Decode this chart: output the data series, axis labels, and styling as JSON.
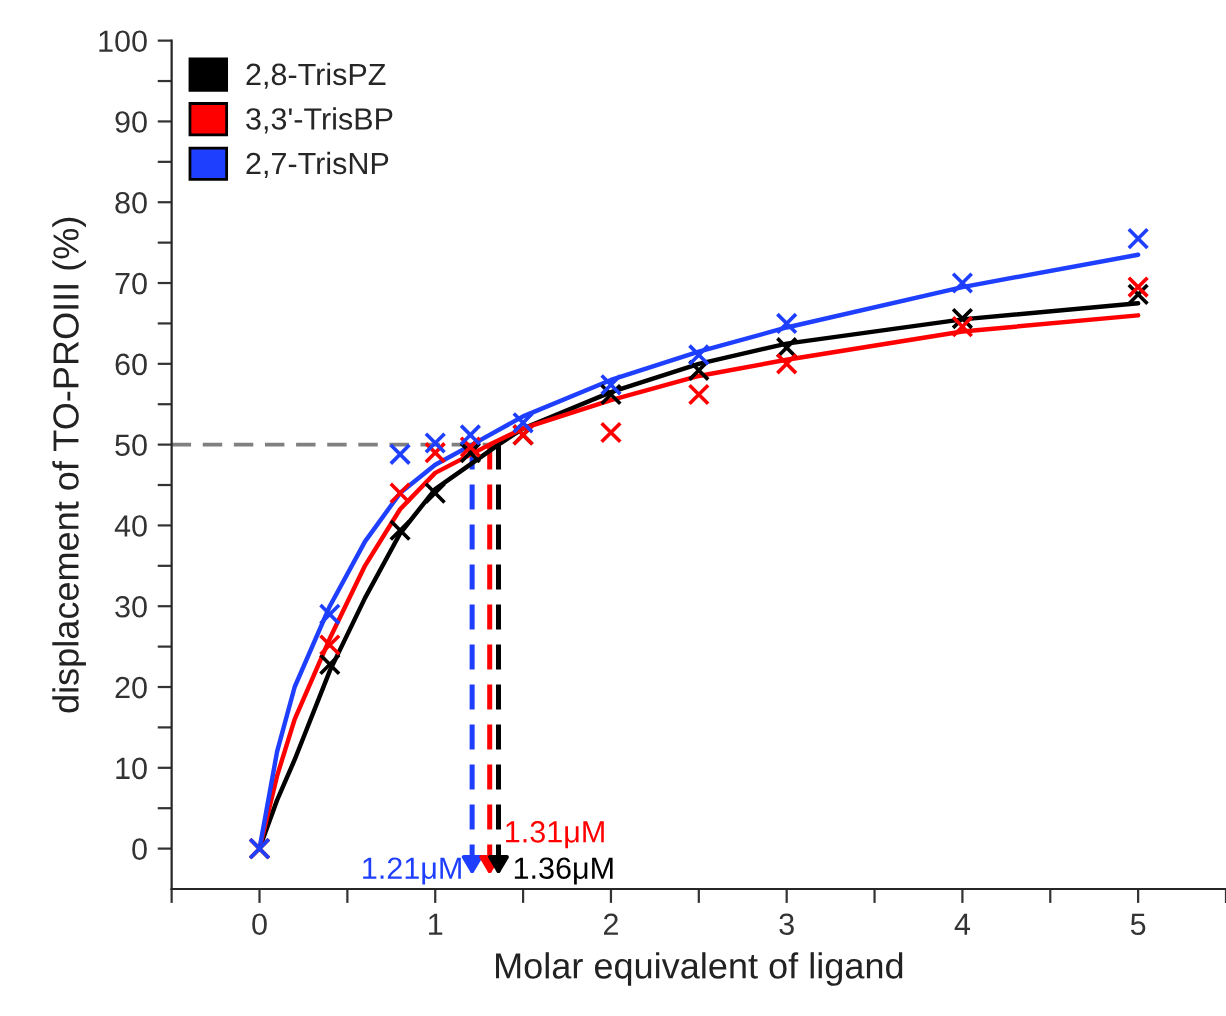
{
  "chart_data": {
    "type": "scatter",
    "xlabel": "Molar equivalent of ligand",
    "ylabel": "displacement of TO-PROIII (%)",
    "xlim": [
      -0.5,
      5.5
    ],
    "ylim": [
      -5,
      100
    ],
    "xticks": [
      {
        "value": -0.5,
        "label": null
      },
      0,
      {
        "value": 0.5,
        "label": null
      },
      1,
      {
        "value": 1.5,
        "label": null
      },
      2,
      {
        "value": 2.5,
        "label": null
      },
      3,
      {
        "value": 3.5,
        "label": null
      },
      4,
      {
        "value": 4.5,
        "label": null
      },
      5,
      {
        "value": 5.5,
        "label": null
      }
    ],
    "yticks": [
      0,
      {
        "value": 5,
        "label": null
      },
      10,
      {
        "value": 15,
        "label": null
      },
      20,
      {
        "value": 25,
        "label": null
      },
      30,
      {
        "value": 35,
        "label": null
      },
      40,
      {
        "value": 45,
        "label": null
      },
      50,
      {
        "value": 55,
        "label": null
      },
      60,
      {
        "value": 65,
        "label": null
      },
      70,
      {
        "value": 75,
        "label": null
      },
      80,
      {
        "value": 85,
        "label": null
      },
      90,
      {
        "value": 95,
        "label": null
      },
      100
    ],
    "marker": "cross",
    "legend": "top left",
    "grid": false,
    "series": [
      {
        "name": "2,8-TrisPZ",
        "color": "#000000",
        "x": [
          0,
          0.4,
          0.8,
          1.0,
          1.2,
          1.5,
          2,
          2.5,
          3,
          4,
          5
        ],
        "values": [
          0,
          22.8,
          39.4,
          44,
          49,
          51.2,
          56.2,
          59.2,
          62,
          65.6,
          68.6
        ]
      },
      {
        "name": "3,3'-TrisBP",
        "color": "#ff0000",
        "x": [
          0,
          0.4,
          0.8,
          1.0,
          1.2,
          1.5,
          2,
          2.5,
          3,
          4,
          5
        ],
        "values": [
          0,
          25.2,
          44,
          49,
          49.7,
          51.2,
          51.5,
          56.2,
          60,
          64.6,
          69.5
        ]
      },
      {
        "name": "2,7-TrisNP",
        "color": "#1f3fff",
        "x": [
          0,
          0.4,
          0.8,
          1.0,
          1.2,
          1.5,
          2,
          2.5,
          3,
          4,
          5
        ],
        "values": [
          0,
          29,
          48.8,
          50.2,
          51.2,
          52.7,
          57.4,
          61.1,
          65,
          70,
          75.5
        ]
      },
      {
        "type": "line",
        "marker": "none",
        "color": "#000000",
        "x": [
          0,
          0.1,
          0.2,
          0.4,
          0.6,
          0.8,
          1.0,
          1.36,
          1.5,
          2,
          2.5,
          3,
          4,
          5
        ],
        "values": [
          0,
          6,
          11,
          22,
          31,
          39,
          44.5,
          50,
          52,
          56.5,
          60,
          62.5,
          65.5,
          67.5
        ]
      },
      {
        "type": "line",
        "marker": "none",
        "color": "#ff0000",
        "x": [
          0,
          0.1,
          0.2,
          0.4,
          0.6,
          0.8,
          1.0,
          1.31,
          1.5,
          2,
          2.5,
          3,
          4,
          5
        ],
        "values": [
          0,
          9,
          16,
          26,
          35,
          42,
          46.5,
          50,
          52,
          55.5,
          58.5,
          60.5,
          64,
          66
        ]
      },
      {
        "type": "line",
        "marker": "none",
        "color": "#1f3fff",
        "x": [
          0,
          0.1,
          0.2,
          0.4,
          0.6,
          0.8,
          1.0,
          1.21,
          1.5,
          2,
          2.5,
          3,
          4,
          5
        ],
        "values": [
          0,
          12,
          20,
          30,
          38,
          44,
          47.5,
          50,
          53.5,
          58,
          61.5,
          64.5,
          69.5,
          73.5
        ]
      }
    ],
    "ref_lines": [
      {
        "axis": "y",
        "value": 50,
        "color": "#808080",
        "line_style": "dashed"
      },
      {
        "axis": "x",
        "value": 1.21,
        "label": "1.21μM",
        "color": "#1f3fff",
        "line_style": "dashed"
      },
      {
        "axis": "x",
        "value": 1.31,
        "label": "1.31μM",
        "color": "#ff0000",
        "line_style": "dashed"
      },
      {
        "axis": "x",
        "value": 1.36,
        "label": "1.36μM",
        "color": "#000000",
        "line_style": "dashed"
      }
    ]
  }
}
